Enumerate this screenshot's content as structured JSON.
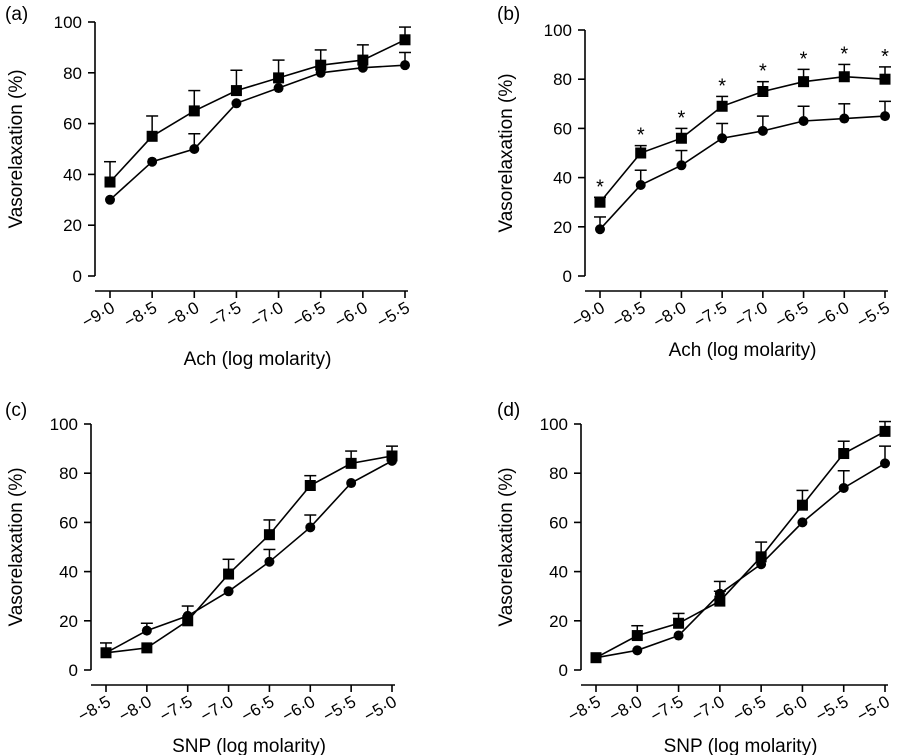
{
  "chart_data": [
    {
      "panel": "(a)",
      "type": "line",
      "xlabel": "Ach (log molarity)",
      "ylabel": "Vasorelaxation (%)",
      "x": [
        -9.0,
        -8.5,
        -8.0,
        -7.5,
        -7.0,
        -6.5,
        -6.0,
        -5.5
      ],
      "x_tick_labels": [
        "-9·0",
        "-8·5",
        "-8·0",
        "-7·5",
        "-7·0",
        "-6·5",
        "-6·0",
        "-5·5"
      ],
      "y_ticks": [
        "0",
        "20",
        "40",
        "60",
        "80",
        "100"
      ],
      "ylim": [
        0,
        100
      ],
      "series": [
        {
          "marker": "square",
          "values": [
            37,
            55,
            65,
            73,
            78,
            83,
            85,
            93
          ],
          "error": [
            8,
            8,
            8,
            8,
            7,
            6,
            6,
            5
          ]
        },
        {
          "marker": "circle",
          "values": [
            30,
            45,
            50,
            68,
            74,
            80,
            82,
            83
          ],
          "error": [
            0,
            0,
            6,
            0,
            0,
            0,
            0,
            5
          ]
        }
      ],
      "significance": [
        "",
        "",
        "",
        "",
        "",
        "",
        "",
        ""
      ]
    },
    {
      "panel": "(b)",
      "type": "line",
      "xlabel": "Ach (log molarity)",
      "ylabel": "Vasorelaxation (%)",
      "x": [
        -9.0,
        -8.5,
        -8.0,
        -7.5,
        -7.0,
        -6.5,
        -6.0,
        -5.5
      ],
      "x_tick_labels": [
        "-9·0",
        "-8·5",
        "-8·0",
        "-7·5",
        "-7·0",
        "-6·5",
        "-6·0",
        "-5·5"
      ],
      "y_ticks": [
        "0",
        "20",
        "40",
        "60",
        "80",
        "100"
      ],
      "ylim": [
        0,
        100
      ],
      "series": [
        {
          "marker": "square",
          "values": [
            30,
            50,
            56,
            69,
            75,
            79,
            81,
            80
          ],
          "error": [
            2,
            3,
            4,
            4,
            4,
            5,
            5,
            5
          ]
        },
        {
          "marker": "circle",
          "values": [
            19,
            37,
            45,
            56,
            59,
            63,
            64,
            65
          ],
          "error": [
            5,
            6,
            6,
            6,
            6,
            6,
            6,
            6
          ]
        }
      ],
      "significance": [
        "*",
        "*",
        "*",
        "*",
        "*",
        "*",
        "*",
        "*"
      ]
    },
    {
      "panel": "(c)",
      "type": "line",
      "xlabel": "SNP (log molarity)",
      "ylabel": "Vasorelaxation (%)",
      "x": [
        -8.5,
        -8.0,
        -7.5,
        -7.0,
        -6.5,
        -6.0,
        -5.5,
        -5.0
      ],
      "x_tick_labels": [
        "-8·5",
        "-8·0",
        "-7·5",
        "-7·0",
        "-6·5",
        "-6·0",
        "-5·5",
        "-5·0"
      ],
      "y_ticks": [
        "0",
        "20",
        "40",
        "60",
        "80",
        "100"
      ],
      "ylim": [
        0,
        100
      ],
      "series": [
        {
          "marker": "square",
          "values": [
            7,
            9,
            20,
            39,
            55,
            75,
            84,
            87
          ],
          "error": [
            4,
            0,
            6,
            6,
            6,
            4,
            5,
            4
          ]
        },
        {
          "marker": "circle",
          "values": [
            7,
            16,
            22,
            32,
            44,
            58,
            76,
            85
          ],
          "error": [
            0,
            3,
            0,
            0,
            5,
            5,
            0,
            0
          ]
        }
      ],
      "significance": [
        "",
        "",
        "",
        "",
        "",
        "",
        "",
        ""
      ]
    },
    {
      "panel": "(d)",
      "type": "line",
      "xlabel": "SNP (log molarity)",
      "ylabel": "Vasorelaxation (%)",
      "x": [
        -8.5,
        -8.0,
        -7.5,
        -7.0,
        -6.5,
        -6.0,
        -5.5,
        -5.0
      ],
      "x_tick_labels": [
        "-8·5",
        "-8·0",
        "-7·5",
        "-7·0",
        "-6·5",
        "-6·0",
        "-5·5",
        "-5·0"
      ],
      "y_ticks": [
        "0",
        "20",
        "40",
        "60",
        "80",
        "100"
      ],
      "ylim": [
        0,
        100
      ],
      "series": [
        {
          "marker": "square",
          "values": [
            5,
            14,
            19,
            28,
            46,
            67,
            88,
            97
          ],
          "error": [
            0,
            4,
            4,
            4,
            6,
            6,
            5,
            4
          ]
        },
        {
          "marker": "circle",
          "values": [
            5,
            8,
            14,
            31,
            43,
            60,
            74,
            84
          ],
          "error": [
            0,
            0,
            0,
            5,
            0,
            0,
            7,
            7
          ]
        }
      ],
      "significance": [
        "",
        "",
        "",
        "",
        "",
        "",
        "",
        ""
      ]
    }
  ]
}
